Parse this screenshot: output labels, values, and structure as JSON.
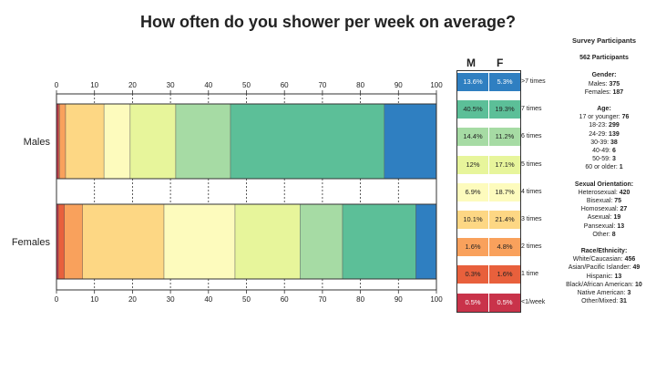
{
  "title": "How often do you shower per week on average?",
  "legend": {
    "col_m": "M",
    "col_f": "F",
    "rows": [
      {
        "label": ">7 times",
        "m": "13.6%",
        "f": "5.3%",
        "color": "#2f7fc1"
      },
      {
        "label": "7 times",
        "m": "40.5%",
        "f": "19.3%",
        "color": "#5cbf98"
      },
      {
        "label": "6 times",
        "m": "14.4%",
        "f": "11.2%",
        "color": "#a6dba4"
      },
      {
        "label": "5 times",
        "m": "12%",
        "f": "17.1%",
        "color": "#e7f59b"
      },
      {
        "label": "4 times",
        "m": "6.9%",
        "f": "18.7%",
        "color": "#fdfbbd"
      },
      {
        "label": "3 times",
        "m": "10.1%",
        "f": "21.4%",
        "color": "#fdd784"
      },
      {
        "label": "2 times",
        "m": "1.6%",
        "f": "4.8%",
        "color": "#f9a15c"
      },
      {
        "label": "1 time",
        "m": "0.3%",
        "f": "1.6%",
        "color": "#e8603c"
      },
      {
        "label": "<1/week",
        "m": "0.5%",
        "f": "0.5%",
        "color": "#c9334a"
      }
    ]
  },
  "panel": {
    "title": "Survey Participants",
    "total": "562 Participants",
    "sections": [
      {
        "title": "Gender:",
        "items": [
          {
            "label": "Males:",
            "value": "375"
          },
          {
            "label": "Females:",
            "value": "187"
          }
        ]
      },
      {
        "title": "Age:",
        "items": [
          {
            "label": "17 or younger:",
            "value": "76"
          },
          {
            "label": "18-23:",
            "value": "299"
          },
          {
            "label": "24-29:",
            "value": "139"
          },
          {
            "label": "30-39:",
            "value": "38"
          },
          {
            "label": "40-49:",
            "value": "6"
          },
          {
            "label": "50-59:",
            "value": "3"
          },
          {
            "label": "60 or older:",
            "value": "1"
          }
        ]
      },
      {
        "title": "Sexual Orientation:",
        "items": [
          {
            "label": "Heterosexual:",
            "value": "420"
          },
          {
            "label": "Bisexual:",
            "value": "75"
          },
          {
            "label": "Homosexual:",
            "value": "27"
          },
          {
            "label": "Asexual:",
            "value": "19"
          },
          {
            "label": "Pansexual:",
            "value": "13"
          },
          {
            "label": "Other:",
            "value": "8"
          }
        ]
      },
      {
        "title": "Race/Ethnicity:",
        "items": [
          {
            "label": "White/Caucasian:",
            "value": "456"
          },
          {
            "label": "Asian/Pacific Islander:",
            "value": "49"
          },
          {
            "label": "Hispanic:",
            "value": "13"
          },
          {
            "label": "Black/African American:",
            "value": "10"
          },
          {
            "label": "Native American:",
            "value": "3"
          },
          {
            "label": "Other/Mixed:",
            "value": "31"
          }
        ]
      }
    ]
  },
  "chart_data": {
    "type": "bar",
    "orientation": "horizontal",
    "stacked": true,
    "title": "How often do you shower per week on average?",
    "categories": [
      "Males",
      "Females"
    ],
    "xlim": [
      0,
      100
    ],
    "xticks": [
      0,
      10,
      20,
      30,
      40,
      50,
      60,
      70,
      80,
      90,
      100
    ],
    "grid": true,
    "series": [
      {
        "name": "<1/week",
        "color": "#c9334a",
        "values": [
          0.5,
          0.5
        ]
      },
      {
        "name": "1 time",
        "color": "#e8603c",
        "values": [
          0.3,
          1.6
        ]
      },
      {
        "name": "2 times",
        "color": "#f9a15c",
        "values": [
          1.6,
          4.8
        ]
      },
      {
        "name": "3 times",
        "color": "#fdd784",
        "values": [
          10.1,
          21.4
        ]
      },
      {
        "name": "4 times",
        "color": "#fdfbbd",
        "values": [
          6.9,
          18.7
        ]
      },
      {
        "name": "5 times",
        "color": "#e7f59b",
        "values": [
          12,
          17.1
        ]
      },
      {
        "name": "6 times",
        "color": "#a6dba4",
        "values": [
          14.4,
          11.2
        ]
      },
      {
        "name": "7 times",
        "color": "#5cbf98",
        "values": [
          40.5,
          19.3
        ]
      },
      {
        "name": ">7 times",
        "color": "#2f7fc1",
        "values": [
          13.6,
          5.3
        ]
      }
    ]
  }
}
